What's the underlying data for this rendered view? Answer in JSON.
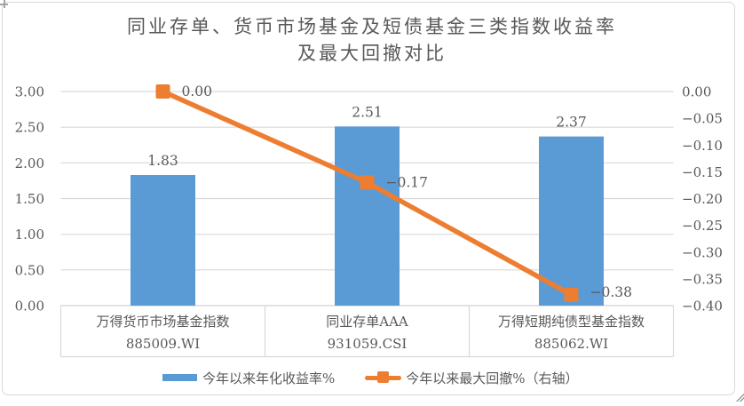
{
  "frame": {
    "background": "#ffffff",
    "border_color": "#d9d9d9"
  },
  "chart_data": {
    "type": "bar+line combo, dual axis",
    "title_line1": "同业存单、货币市场基金及短债基金三类指数收益率",
    "title_line2": "及最大回撤对比",
    "categories": [
      {
        "name": "万得货币市场基金指数",
        "code": "885009.WI"
      },
      {
        "name": "同业存单AAA",
        "code": "931059.CSI"
      },
      {
        "name": "万得短期纯债型基金指数",
        "code": "885062.WI"
      }
    ],
    "series": [
      {
        "name": "今年以来年化收益率%",
        "type": "bar",
        "axis": "left",
        "color": "#5b9bd5",
        "values": [
          1.83,
          2.51,
          2.37
        ],
        "labels": [
          "1.83",
          "2.51",
          "2.37"
        ]
      },
      {
        "name": "今年以来最大回撤%（右轴）",
        "type": "line",
        "axis": "right",
        "color": "#ed7d31",
        "values": [
          0.0,
          -0.17,
          -0.38
        ],
        "labels": [
          "0.00",
          "−0.17",
          "−0.38"
        ]
      }
    ],
    "left_axis": {
      "min": 0.0,
      "max": 3.0,
      "step": 0.5,
      "ticks_top_to_bottom": [
        "3.00",
        "2.50",
        "2.00",
        "1.50",
        "1.00",
        "0.50",
        "0.00"
      ]
    },
    "right_axis": {
      "min": -0.4,
      "max": 0.0,
      "step": 0.05,
      "ticks_top_to_bottom": [
        "0.00",
        "−0.05",
        "−0.10",
        "−0.15",
        "−0.20",
        "−0.25",
        "−0.30",
        "−0.35",
        "−0.40"
      ]
    },
    "grid": "horizontal gridlines on",
    "legend_position": "bottom",
    "text_color": "#595959",
    "gridline_color": "#d9d9d9"
  }
}
